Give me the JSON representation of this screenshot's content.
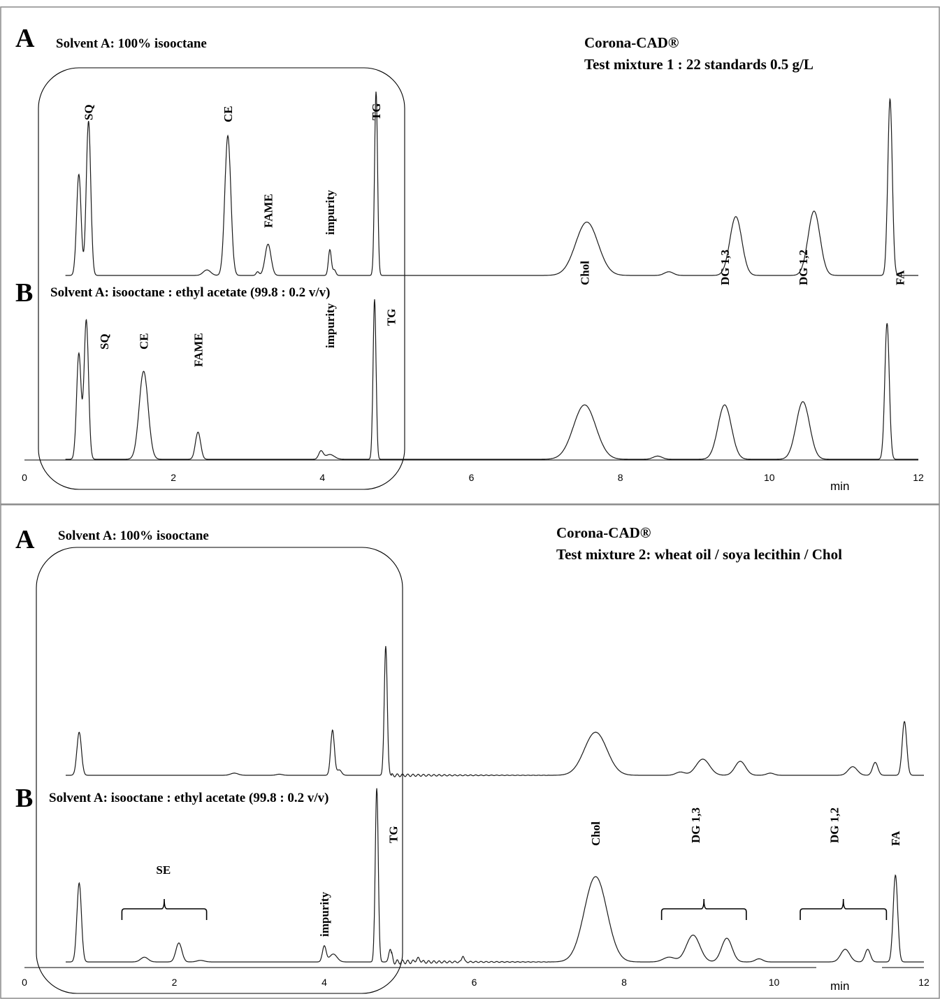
{
  "chart_data": [
    {
      "type": "line",
      "detector": "Corona-CAD®",
      "title": "Test mixture 1 : 22 standards  0.5 g/L",
      "x_unit": "min",
      "x_ticks": [
        "0",
        "2",
        "4",
        "6",
        "8",
        "10",
        "12"
      ],
      "xlim": [
        0,
        12
      ],
      "traces": [
        {
          "panel": "A",
          "condition": "Solvent A: 100% isooctane",
          "peaks": [
            {
              "rt": 0.73,
              "height": 0.55,
              "width": 0.03
            },
            {
              "rt": 0.86,
              "height": 0.84,
              "width": 0.03
            },
            {
              "rt": 2.45,
              "height": 0.03,
              "width": 0.05
            },
            {
              "rt": 2.73,
              "height": 0.76,
              "width": 0.04
            },
            {
              "rt": 3.13,
              "height": 0.02,
              "width": 0.02
            },
            {
              "rt": 3.27,
              "height": 0.17,
              "width": 0.04
            },
            {
              "rt": 4.1,
              "height": 0.14,
              "width": 0.02
            },
            {
              "rt": 4.16,
              "height": 0.03,
              "width": 0.02
            },
            {
              "rt": 4.72,
              "height": 1.0,
              "width": 0.02
            },
            {
              "rt": 7.55,
              "height": 0.29,
              "width": 0.15
            },
            {
              "rt": 8.65,
              "height": 0.02,
              "width": 0.06
            },
            {
              "rt": 9.55,
              "height": 0.32,
              "width": 0.08
            },
            {
              "rt": 10.6,
              "height": 0.35,
              "width": 0.08
            },
            {
              "rt": 11.62,
              "height": 0.96,
              "width": 0.03
            }
          ],
          "labels": [
            {
              "text": "SQ",
              "rt": 0.86
            },
            {
              "text": "CE",
              "rt": 2.73
            },
            {
              "text": "FAME",
              "rt": 3.27
            },
            {
              "text": "impurity",
              "rt": 4.1
            },
            {
              "text": "TG",
              "rt": 4.72
            }
          ]
        },
        {
          "panel": "B",
          "condition": "Solvent A: isooctane :  ethyl acetate   (99.8 : 0.2 v/v)",
          "peaks": [
            {
              "rt": 0.73,
              "height": 0.66,
              "width": 0.03
            },
            {
              "rt": 0.83,
              "height": 0.87,
              "width": 0.03
            },
            {
              "rt": 1.6,
              "height": 0.55,
              "width": 0.06
            },
            {
              "rt": 2.33,
              "height": 0.17,
              "width": 0.035
            },
            {
              "rt": 3.98,
              "height": 0.05,
              "width": 0.03
            },
            {
              "rt": 4.1,
              "height": 0.03,
              "width": 0.06
            },
            {
              "rt": 4.7,
              "height": 1.0,
              "width": 0.02
            },
            {
              "rt": 7.52,
              "height": 0.34,
              "width": 0.15
            },
            {
              "rt": 8.5,
              "height": 0.02,
              "width": 0.06
            },
            {
              "rt": 9.4,
              "height": 0.34,
              "width": 0.09
            },
            {
              "rt": 10.45,
              "height": 0.36,
              "width": 0.09
            },
            {
              "rt": 11.58,
              "height": 0.85,
              "width": 0.03
            }
          ],
          "labels": [
            {
              "text": "SQ",
              "rt": 1.07
            },
            {
              "text": "CE",
              "rt": 1.6
            },
            {
              "text": "FAME",
              "rt": 2.33
            },
            {
              "text": "impurity",
              "rt": 4.1
            },
            {
              "text": "TG",
              "rt": 4.92
            },
            {
              "text": "Chol",
              "rt": 7.52
            },
            {
              "text": "DG 1,3",
              "rt": 9.4
            },
            {
              "text": "DG 1,2",
              "rt": 10.45
            },
            {
              "text": "FA",
              "rt": 11.75
            }
          ]
        }
      ]
    },
    {
      "type": "line",
      "detector": "Corona-CAD®",
      "title": "Test mixture 2: wheat oil  / soya lecithin / Chol",
      "x_unit": "min",
      "x_ticks": [
        "0",
        "2",
        "4",
        "6",
        "8",
        "10",
        "12"
      ],
      "xlim": [
        0,
        12
      ],
      "traces": [
        {
          "panel": "A",
          "condition": "Solvent A: 100% isooctane",
          "peaks": [
            {
              "rt": 0.73,
              "height": 0.4,
              "width": 0.03
            },
            {
              "rt": 2.8,
              "height": 0.02,
              "width": 0.05
            },
            {
              "rt": 3.4,
              "height": 0.01,
              "width": 0.04
            },
            {
              "rt": 4.11,
              "height": 0.42,
              "width": 0.025
            },
            {
              "rt": 4.2,
              "height": 0.05,
              "width": 0.03
            },
            {
              "rt": 4.82,
              "height": 1.2,
              "width": 0.02
            },
            {
              "rt": 7.62,
              "height": 0.4,
              "width": 0.15
            },
            {
              "rt": 8.75,
              "height": 0.03,
              "width": 0.06
            },
            {
              "rt": 9.05,
              "height": 0.15,
              "width": 0.09
            },
            {
              "rt": 9.55,
              "height": 0.13,
              "width": 0.07
            },
            {
              "rt": 9.95,
              "height": 0.02,
              "width": 0.05
            },
            {
              "rt": 11.05,
              "height": 0.08,
              "width": 0.06
            },
            {
              "rt": 11.35,
              "height": 0.12,
              "width": 0.035
            },
            {
              "rt": 11.74,
              "height": 0.5,
              "width": 0.03
            }
          ],
          "labels": []
        },
        {
          "panel": "B",
          "condition": "Solvent A: isooctane :  ethyl acetate   (99.8 : 0.2 v/v)",
          "peaks": [
            {
              "rt": 0.73,
              "height": 0.5,
              "width": 0.03
            },
            {
              "rt": 1.6,
              "height": 0.03,
              "width": 0.05
            },
            {
              "rt": 2.06,
              "height": 0.12,
              "width": 0.04
            },
            {
              "rt": 2.35,
              "height": 0.01,
              "width": 0.05
            },
            {
              "rt": 4.0,
              "height": 0.1,
              "width": 0.025
            },
            {
              "rt": 4.12,
              "height": 0.05,
              "width": 0.05
            },
            {
              "rt": 4.7,
              "height": 1.1,
              "width": 0.02
            },
            {
              "rt": 4.88,
              "height": 0.08,
              "width": 0.02
            },
            {
              "rt": 5.25,
              "height": 0.02,
              "width": 0.03
            },
            {
              "rt": 5.85,
              "height": 0.04,
              "width": 0.015
            },
            {
              "rt": 7.62,
              "height": 0.54,
              "width": 0.15
            },
            {
              "rt": 8.6,
              "height": 0.03,
              "width": 0.08
            },
            {
              "rt": 8.92,
              "height": 0.17,
              "width": 0.09
            },
            {
              "rt": 9.37,
              "height": 0.15,
              "width": 0.07
            },
            {
              "rt": 9.8,
              "height": 0.02,
              "width": 0.05
            },
            {
              "rt": 10.95,
              "height": 0.08,
              "width": 0.06
            },
            {
              "rt": 11.25,
              "height": 0.08,
              "width": 0.035
            },
            {
              "rt": 11.62,
              "height": 0.55,
              "width": 0.03
            }
          ],
          "labels": [
            {
              "text": "SE",
              "rt": 1.85
            },
            {
              "text": "impurity",
              "rt": 4.0
            },
            {
              "text": "TG",
              "rt": 4.92
            },
            {
              "text": "Chol",
              "rt": 7.62
            },
            {
              "text": "DG 1,3",
              "rt": 8.95
            },
            {
              "text": "DG 1,2",
              "rt": 10.8
            },
            {
              "text": "FA",
              "rt": 11.62
            }
          ],
          "brackets": [
            {
              "from": 1.3,
              "to": 2.43
            },
            {
              "from": 8.5,
              "to": 9.63
            },
            {
              "from": 10.35,
              "to": 11.5
            }
          ]
        }
      ]
    }
  ]
}
